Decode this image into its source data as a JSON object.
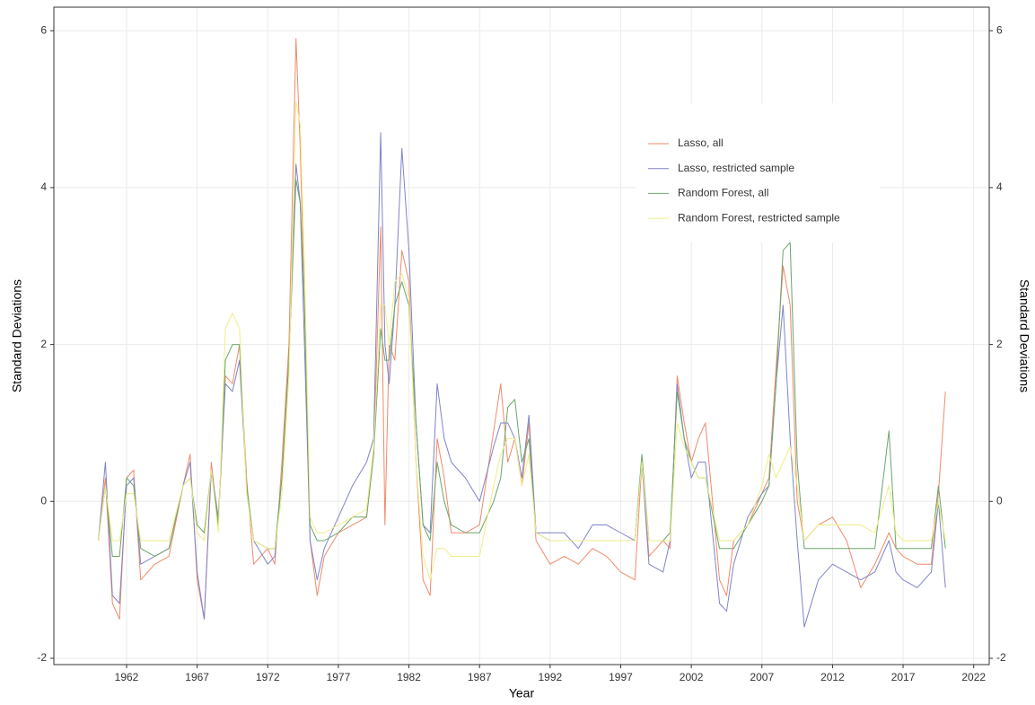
{
  "chart_data": {
    "type": "line",
    "xlabel": "Year",
    "ylabel": "Standard Deviations",
    "y2label": "Standard Deviations",
    "xlim": [
      1956.85,
      2023.1
    ],
    "xticks": [
      1962,
      1967,
      1972,
      1977,
      1982,
      1987,
      1992,
      1997,
      2002,
      2007,
      2012,
      2017,
      2022
    ],
    "ylim": [
      -2.08,
      6.3
    ],
    "yticks": [
      -2,
      0,
      2,
      4,
      6
    ],
    "y2lim": [
      -2.08,
      6.3
    ],
    "y2ticks": [
      -2,
      0,
      2,
      4,
      6
    ],
    "grid": true,
    "legend": "upper right",
    "x": [
      1960,
      1960.5,
      1961,
      1961.5,
      1962,
      1962.5,
      1963,
      1964,
      1965,
      1966,
      1966.5,
      1967,
      1967.5,
      1968,
      1968.5,
      1969,
      1969.5,
      1970,
      1970.5,
      1971,
      1972,
      1972.5,
      1973,
      1973.5,
      1974,
      1974.3,
      1974.6,
      1975,
      1975.5,
      1976,
      1977,
      1978,
      1979,
      1979.5,
      1980,
      1980.3,
      1980.6,
      1981,
      1981.5,
      1982,
      1982.5,
      1983,
      1983.5,
      1984,
      1984.5,
      1985,
      1986,
      1987,
      1988,
      1988.5,
      1989,
      1989.5,
      1990,
      1990.5,
      1991,
      1992,
      1993,
      1994,
      1995,
      1996,
      1997,
      1998,
      1998.5,
      1999,
      2000,
      2000.5,
      2001,
      2001.5,
      2002,
      2002.5,
      2003,
      2004,
      2004.5,
      2005,
      2006,
      2007,
      2007.5,
      2008,
      2008.5,
      2009,
      2009.5,
      2010,
      2011,
      2012,
      2013,
      2014,
      2015,
      2016,
      2016.5,
      2017,
      2018,
      2019,
      2019.5,
      2020
    ],
    "series": [
      {
        "name": "Lasso, all",
        "color": "#f08a6a",
        "values": [
          -0.5,
          0.3,
          -1.3,
          -1.5,
          0.3,
          0.4,
          -1.0,
          -0.8,
          -0.7,
          0.2,
          0.6,
          -1.0,
          -1.5,
          0.5,
          -0.3,
          1.6,
          1.5,
          2.0,
          0.3,
          -0.8,
          -0.6,
          -0.8,
          0.5,
          2.0,
          5.9,
          4.5,
          2.5,
          -0.5,
          -1.2,
          -0.7,
          -0.4,
          -0.3,
          -0.2,
          0.6,
          3.5,
          -0.3,
          2.0,
          1.8,
          3.2,
          2.8,
          0.5,
          -1.0,
          -1.2,
          0.8,
          0.3,
          -0.4,
          -0.4,
          -0.3,
          0.9,
          1.5,
          0.5,
          0.8,
          0.2,
          1.0,
          -0.5,
          -0.8,
          -0.7,
          -0.8,
          -0.6,
          -0.7,
          -0.9,
          -1.0,
          0.5,
          -0.7,
          -0.5,
          -0.6,
          1.6,
          1.0,
          0.5,
          0.8,
          1.0,
          -1.0,
          -1.2,
          -0.5,
          -0.3,
          0.1,
          0.3,
          1.7,
          3.0,
          2.5,
          0.0,
          -0.5,
          -0.3,
          -0.2,
          -0.5,
          -1.1,
          -0.8,
          -0.4,
          -0.6,
          -0.7,
          -0.8,
          -0.8,
          0.1,
          1.4
        ]
      },
      {
        "name": "Lasso, restricted sample",
        "color": "#7f84c8",
        "values": [
          -0.5,
          0.5,
          -1.2,
          -1.3,
          0.2,
          0.3,
          -0.8,
          -0.7,
          -0.6,
          0.2,
          0.5,
          -0.9,
          -1.5,
          0.4,
          -0.2,
          1.5,
          1.4,
          1.8,
          0.2,
          -0.5,
          -0.8,
          -0.7,
          0.3,
          1.8,
          4.3,
          3.8,
          2.0,
          -0.5,
          -1.0,
          -0.6,
          -0.2,
          0.2,
          0.5,
          0.8,
          4.7,
          2.0,
          1.5,
          2.5,
          4.5,
          3.2,
          1.0,
          -0.3,
          -0.4,
          1.5,
          0.8,
          0.5,
          0.3,
          0.0,
          0.7,
          1.0,
          1.0,
          0.8,
          0.3,
          1.1,
          -0.4,
          -0.4,
          -0.4,
          -0.6,
          -0.3,
          -0.3,
          -0.4,
          -0.5,
          0.5,
          -0.8,
          -0.9,
          -0.5,
          1.5,
          0.8,
          0.3,
          0.5,
          0.5,
          -1.3,
          -1.4,
          -0.8,
          -0.2,
          0.1,
          0.2,
          1.5,
          2.5,
          0.8,
          -0.5,
          -1.6,
          -1.0,
          -0.8,
          -0.9,
          -1.0,
          -0.9,
          -0.5,
          -0.9,
          -1.0,
          -1.1,
          -0.9,
          0.0,
          -1.1
        ]
      },
      {
        "name": "Random Forest, all",
        "color": "#6ba66b",
        "values": [
          -0.5,
          0.2,
          -0.7,
          -0.7,
          0.3,
          0.2,
          -0.6,
          -0.7,
          -0.6,
          0.2,
          0.3,
          -0.3,
          -0.4,
          0.4,
          -0.3,
          1.8,
          2.0,
          2.0,
          0.2,
          -0.5,
          -0.6,
          -0.6,
          0.3,
          1.8,
          4.1,
          3.8,
          2.5,
          -0.3,
          -0.5,
          -0.5,
          -0.4,
          -0.2,
          -0.2,
          0.6,
          2.2,
          1.8,
          1.8,
          2.5,
          2.8,
          2.5,
          1.0,
          -0.3,
          -0.5,
          0.5,
          0.0,
          -0.3,
          -0.4,
          -0.4,
          0.0,
          0.3,
          1.2,
          1.3,
          0.5,
          0.8,
          -0.4,
          -0.5,
          -0.5,
          -0.5,
          -0.5,
          -0.5,
          -0.5,
          -0.5,
          0.6,
          -0.5,
          -0.5,
          -0.4,
          1.4,
          0.8,
          0.5,
          0.3,
          0.3,
          -0.6,
          -0.6,
          -0.6,
          -0.3,
          0.0,
          0.2,
          1.5,
          3.2,
          3.3,
          0.5,
          -0.6,
          -0.6,
          -0.6,
          -0.6,
          -0.6,
          -0.6,
          0.9,
          -0.6,
          -0.6,
          -0.6,
          -0.6,
          0.2,
          -0.6
        ]
      },
      {
        "name": "Random Forest, restricted sample",
        "color": "#eeee88",
        "values": [
          -0.5,
          0.2,
          -0.5,
          -0.5,
          0.1,
          0.1,
          -0.5,
          -0.5,
          -0.5,
          0.2,
          0.3,
          -0.4,
          -0.5,
          0.4,
          -0.4,
          2.2,
          2.4,
          2.2,
          0.1,
          -0.5,
          -0.6,
          -0.6,
          0.1,
          1.6,
          5.1,
          4.8,
          3.0,
          -0.2,
          -0.4,
          -0.4,
          -0.3,
          -0.2,
          -0.1,
          0.7,
          2.5,
          2.5,
          2.0,
          2.8,
          2.9,
          2.6,
          0.5,
          -0.7,
          -1.0,
          -0.6,
          -0.6,
          -0.7,
          -0.7,
          -0.7,
          0.2,
          0.6,
          0.8,
          0.8,
          0.2,
          0.6,
          -0.4,
          -0.5,
          -0.5,
          -0.5,
          -0.5,
          -0.5,
          -0.5,
          -0.5,
          0.5,
          -0.5,
          -0.5,
          -0.5,
          1.0,
          0.7,
          0.5,
          0.3,
          0.3,
          -0.5,
          -0.5,
          -0.5,
          -0.3,
          0.2,
          0.6,
          0.3,
          0.5,
          0.7,
          0.2,
          -0.5,
          -0.3,
          -0.3,
          -0.3,
          -0.3,
          -0.4,
          0.2,
          -0.4,
          -0.5,
          -0.5,
          -0.5,
          0.0,
          -0.5
        ]
      }
    ]
  }
}
